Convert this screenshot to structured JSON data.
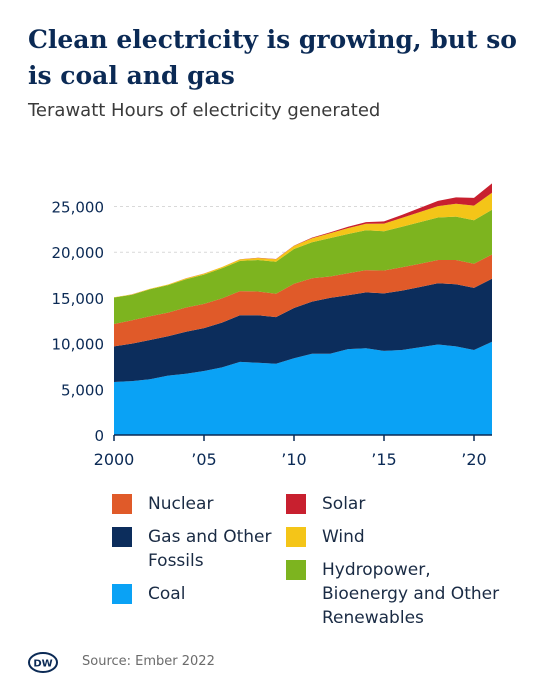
{
  "header": {
    "title": "Clean electricity is growing, but so is coal and gas",
    "subtitle": "Terawatt Hours of electricity generated"
  },
  "footer": {
    "source": "Source: Ember 2022",
    "logo_text": "DW"
  },
  "legend": [
    {
      "label": "Nuclear",
      "color": "#e05a29"
    },
    {
      "label": "Gas and Other Fossils",
      "color": "#0c2d5c"
    },
    {
      "label": "Coal",
      "color": "#0aa2f5"
    },
    {
      "label": "Solar",
      "color": "#c8202f"
    },
    {
      "label": "Wind",
      "color": "#f4c518"
    },
    {
      "label": "Hydropower, Bioenergy and Other Renewables",
      "color": "#7db41f"
    }
  ],
  "chart_data": {
    "type": "area",
    "stacked": true,
    "x": [
      2000,
      2001,
      2002,
      2003,
      2004,
      2005,
      2006,
      2007,
      2008,
      2009,
      2010,
      2011,
      2012,
      2013,
      2014,
      2015,
      2016,
      2017,
      2018,
      2019,
      2020,
      2021
    ],
    "x_tick_labels": [
      {
        "x": 2000,
        "label": "2000"
      },
      {
        "x": 2005,
        "label": "’05"
      },
      {
        "x": 2010,
        "label": "’10"
      },
      {
        "x": 2015,
        "label": "’15"
      },
      {
        "x": 2020,
        "label": "’20"
      }
    ],
    "y_ticks": [
      0,
      5000,
      10000,
      15000,
      20000,
      25000
    ],
    "y_tick_labels": [
      "0",
      "5,000",
      "10,000",
      "15,000",
      "20,000",
      "25,000"
    ],
    "ylim": [
      0,
      29000
    ],
    "grid": true,
    "series": [
      {
        "name": "Coal",
        "color": "#0aa2f5",
        "values": [
          5800,
          5900,
          6100,
          6500,
          6700,
          7000,
          7400,
          8000,
          7900,
          7800,
          8400,
          8900,
          8900,
          9400,
          9500,
          9200,
          9300,
          9600,
          9900,
          9700,
          9300,
          10200
        ]
      },
      {
        "name": "Gas and Other Fossils",
        "color": "#0c2d5c",
        "values": [
          3900,
          4100,
          4300,
          4300,
          4600,
          4700,
          4900,
          5100,
          5200,
          5100,
          5500,
          5700,
          6100,
          5900,
          6100,
          6300,
          6500,
          6600,
          6700,
          6800,
          6800,
          6900
        ]
      },
      {
        "name": "Nuclear",
        "color": "#e05a29",
        "values": [
          2450,
          2550,
          2600,
          2600,
          2650,
          2650,
          2650,
          2650,
          2600,
          2550,
          2650,
          2550,
          2350,
          2400,
          2450,
          2500,
          2550,
          2550,
          2550,
          2650,
          2650,
          2650
        ]
      },
      {
        "name": "Hydropower, Bioenergy and Other Renewables",
        "color": "#7db41f",
        "values": [
          2900,
          2800,
          2950,
          3000,
          3100,
          3200,
          3300,
          3300,
          3450,
          3500,
          3800,
          3950,
          4200,
          4300,
          4350,
          4300,
          4450,
          4550,
          4650,
          4750,
          4750,
          4900
        ]
      },
      {
        "name": "Wind",
        "color": "#f4c518",
        "values": [
          30,
          40,
          50,
          70,
          90,
          110,
          130,
          170,
          220,
          280,
          340,
          440,
          520,
          640,
          710,
          830,
          960,
          1100,
          1250,
          1400,
          1600,
          1850
        ]
      },
      {
        "name": "Solar",
        "color": "#c8202f",
        "values": [
          5,
          5,
          5,
          5,
          10,
          10,
          10,
          10,
          20,
          25,
          35,
          60,
          100,
          140,
          190,
          250,
          330,
          450,
          570,
          700,
          850,
          1030
        ]
      }
    ]
  }
}
